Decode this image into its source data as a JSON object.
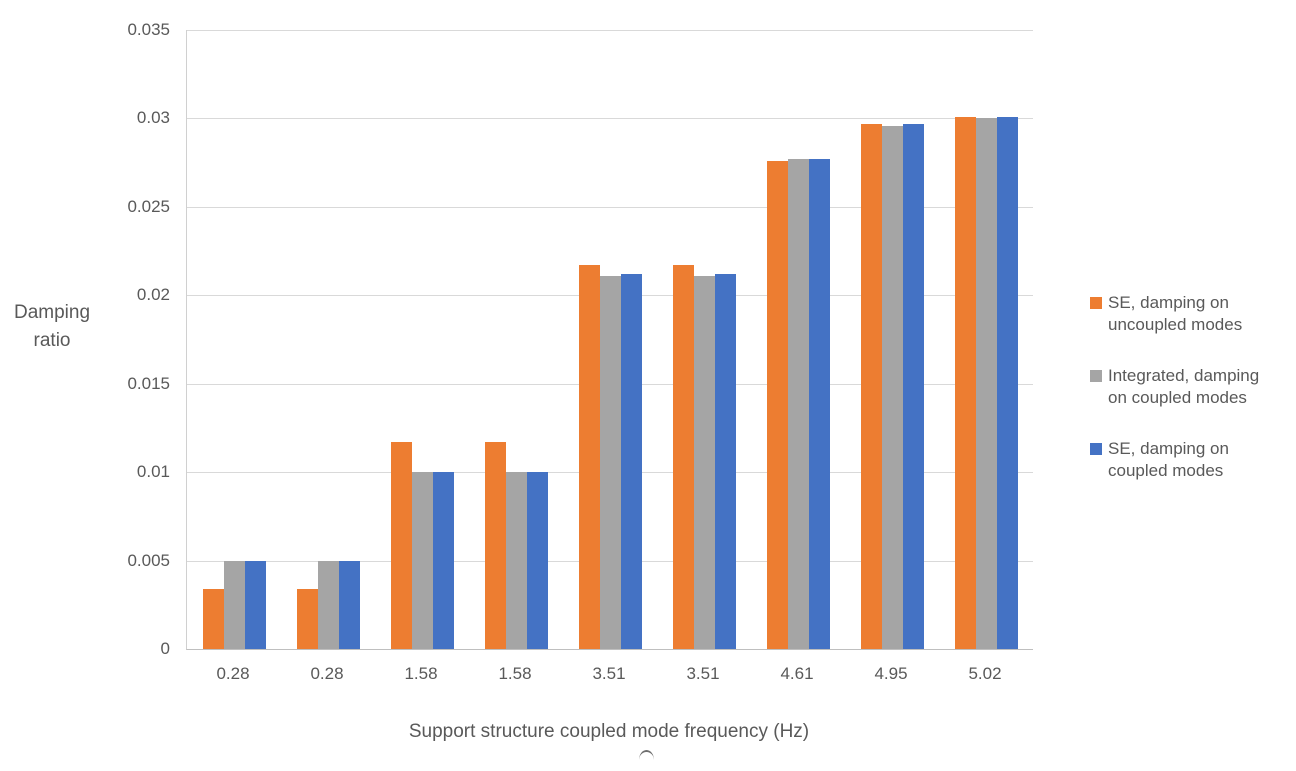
{
  "chart_data": {
    "type": "bar",
    "title": "",
    "ylabel": "Damping ratio",
    "xlabel": "Support structure coupled mode frequency (Hz)",
    "categories": [
      "0.28",
      "0.28",
      "1.58",
      "1.58",
      "3.51",
      "3.51",
      "4.61",
      "4.95",
      "5.02"
    ],
    "series": [
      {
        "name": "SE, damping on uncoupled modes",
        "color": "#ED7D31",
        "values": [
          0.0034,
          0.0034,
          0.0117,
          0.0117,
          0.0217,
          0.0217,
          0.0276,
          0.0297,
          0.0301
        ]
      },
      {
        "name": "Integrated, damping on coupled modes",
        "color": "#A5A5A5",
        "values": [
          0.005,
          0.005,
          0.01,
          0.01,
          0.0211,
          0.0211,
          0.0277,
          0.0296,
          0.03
        ]
      },
      {
        "name": "SE, damping on coupled modes",
        "color": "#4472C4",
        "values": [
          0.005,
          0.005,
          0.01,
          0.01,
          0.0212,
          0.0212,
          0.0277,
          0.0297,
          0.0301
        ]
      }
    ],
    "ylim": [
      0,
      0.035
    ],
    "ytick_labels": [
      "0.035",
      "0.03",
      "0.025",
      "0.02",
      "0.015",
      "0.01",
      "0.005",
      "0"
    ],
    "grid": true,
    "legend_position": "right",
    "colors": {
      "text": "#595959",
      "gridline": "#D9D9D9",
      "axis_line": "#BFBFBF",
      "background": "#FFFFFF"
    }
  }
}
